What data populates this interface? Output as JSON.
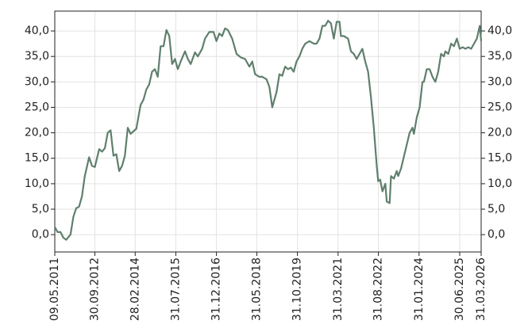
{
  "chart_data": {
    "type": "line",
    "x": [
      2011.35,
      2011.45,
      2011.55,
      2011.65,
      2011.75,
      2011.9,
      2012.0,
      2012.1,
      2012.2,
      2012.3,
      2012.4,
      2012.55,
      2012.65,
      2012.75,
      2012.9,
      2013.0,
      2013.1,
      2013.2,
      2013.3,
      2013.4,
      2013.5,
      2013.6,
      2013.7,
      2013.8,
      2013.9,
      2014.0,
      2014.2,
      2014.35,
      2014.45,
      2014.55,
      2014.65,
      2014.75,
      2014.85,
      2014.95,
      2015.05,
      2015.15,
      2015.25,
      2015.35,
      2015.45,
      2015.55,
      2015.65,
      2015.75,
      2015.9,
      2016.0,
      2016.1,
      2016.25,
      2016.35,
      2016.5,
      2016.6,
      2016.75,
      2016.9,
      2017.0,
      2017.1,
      2017.2,
      2017.3,
      2017.4,
      2017.55,
      2017.7,
      2017.85,
      2018.0,
      2018.15,
      2018.25,
      2018.35,
      2018.5,
      2018.6,
      2018.75,
      2018.85,
      2018.95,
      2019.1,
      2019.2,
      2019.3,
      2019.4,
      2019.5,
      2019.6,
      2019.7,
      2019.8,
      2019.9,
      2020.0,
      2020.1,
      2020.25,
      2020.4,
      2020.5,
      2020.6,
      2020.7,
      2020.8,
      2020.9,
      2021.0,
      2021.1,
      2021.2,
      2021.3,
      2021.35,
      2021.45,
      2021.6,
      2021.7,
      2021.8,
      2021.9,
      2022.0,
      2022.1,
      2022.2,
      2022.3,
      2022.4,
      2022.5,
      2022.6,
      2022.65,
      2022.72,
      2022.8,
      2022.9,
      2022.95,
      2023.05,
      2023.1,
      2023.2,
      2023.3,
      2023.35,
      2023.45,
      2023.6,
      2023.75,
      2023.85,
      2023.9,
      2024.0,
      2024.1,
      2024.2,
      2024.25,
      2024.35,
      2024.45,
      2024.55,
      2024.65,
      2024.75,
      2024.85,
      2024.95,
      2025.0,
      2025.1,
      2025.2,
      2025.3,
      2025.4,
      2025.5,
      2025.6,
      2025.7,
      2025.8,
      2025.9,
      2026.0,
      2026.1,
      2026.2,
      2026.25
    ],
    "series": [
      {
        "color": "#5f7f6c",
        "values": [
          1.5,
          0.5,
          0.5,
          -0.6,
          -1.0,
          0,
          3.5,
          5.2,
          5.5,
          7.5,
          11.5,
          15.2,
          13.5,
          13.3,
          16.8,
          16.3,
          17.0,
          20.0,
          20.5,
          15.5,
          15.8,
          12.5,
          13.5,
          15.5,
          21.0,
          19.8,
          20.8,
          25.5,
          26.5,
          28.5,
          29.5,
          32.0,
          32.5,
          31.0,
          37.0,
          37.0,
          40.2,
          39.0,
          33.5,
          34.5,
          32.5,
          34.0,
          36.0,
          34.5,
          33.5,
          35.8,
          35.0,
          36.5,
          38.5,
          39.8,
          39.8,
          38.0,
          39.5,
          39.0,
          40.5,
          40.2,
          38.5,
          35.5,
          34.8,
          34.5,
          33.0,
          34.0,
          31.5,
          31.0,
          31.0,
          30.5,
          29.0,
          25.0,
          28.0,
          31.5,
          31.2,
          33.0,
          32.5,
          32.8,
          32.0,
          34.0,
          35.0,
          36.5,
          37.5,
          38.0,
          37.5,
          37.5,
          38.5,
          41.0,
          41.0,
          42.0,
          41.5,
          38.5,
          41.8,
          41.8,
          39.0,
          39.0,
          38.5,
          36.0,
          35.5,
          34.5,
          35.5,
          36.5,
          34.0,
          32.0,
          27.0,
          21.0,
          13.5,
          10.5,
          10.8,
          8.5,
          10.0,
          6.5,
          6.2,
          11.5,
          11.0,
          12.5,
          11.5,
          13.0,
          16.5,
          20.0,
          21.0,
          19.8,
          23.0,
          25.0,
          30.0,
          30.0,
          32.5,
          32.5,
          31.0,
          30.0,
          32.0,
          35.5,
          35.0,
          36.0,
          35.5,
          37.5,
          37.0,
          38.5,
          36.5,
          36.8,
          36.5,
          36.8,
          36.5,
          37.5,
          38.5,
          41.0,
          38.0
        ]
      }
    ],
    "xlim": [
      2011.35,
      2026.25
    ],
    "xticks": [
      {
        "value": 2011.35,
        "label": "09.05.2011"
      },
      {
        "value": 2012.75,
        "label": "30.09.2012"
      },
      {
        "value": 2014.16,
        "label": "28.02.2014"
      },
      {
        "value": 2015.58,
        "label": "31.07.2015"
      },
      {
        "value": 2017.0,
        "label": "31.12.2016"
      },
      {
        "value": 2018.41,
        "label": "31.05.2018"
      },
      {
        "value": 2019.83,
        "label": "31.10.2019"
      },
      {
        "value": 2021.25,
        "label": "31.03.2021"
      },
      {
        "value": 2022.66,
        "label": "31.08.2022"
      },
      {
        "value": 2024.08,
        "label": "31.01.2024"
      },
      {
        "value": 2025.5,
        "label": "30.06.2025"
      },
      {
        "value": 2026.25,
        "label": "31.03.2026"
      }
    ],
    "ylim": [
      -3.4,
      43.9
    ],
    "yticks": [
      {
        "value": 0,
        "label": "0,0"
      },
      {
        "value": 5,
        "label": "5,0"
      },
      {
        "value": 10,
        "label": "10,0"
      },
      {
        "value": 15,
        "label": "15,0"
      },
      {
        "value": 20,
        "label": "20,0"
      },
      {
        "value": 25,
        "label": "25,0"
      },
      {
        "value": 30,
        "label": "30,0"
      },
      {
        "value": 35,
        "label": "35,0"
      },
      {
        "value": 40,
        "label": "40,0"
      }
    ],
    "y2lim": [
      -3.4,
      43.9
    ],
    "y2ticks": [
      {
        "value": 0,
        "label": "0,0"
      },
      {
        "value": 5,
        "label": "5,0"
      },
      {
        "value": 10,
        "label": "10,0"
      },
      {
        "value": 15,
        "label": "15,0"
      },
      {
        "value": 20,
        "label": "20,0"
      },
      {
        "value": 25,
        "label": "25,0"
      },
      {
        "value": 30,
        "label": "30,0"
      },
      {
        "value": 35,
        "label": "35,0"
      },
      {
        "value": 40,
        "label": "40,0"
      }
    ],
    "grid": true
  }
}
